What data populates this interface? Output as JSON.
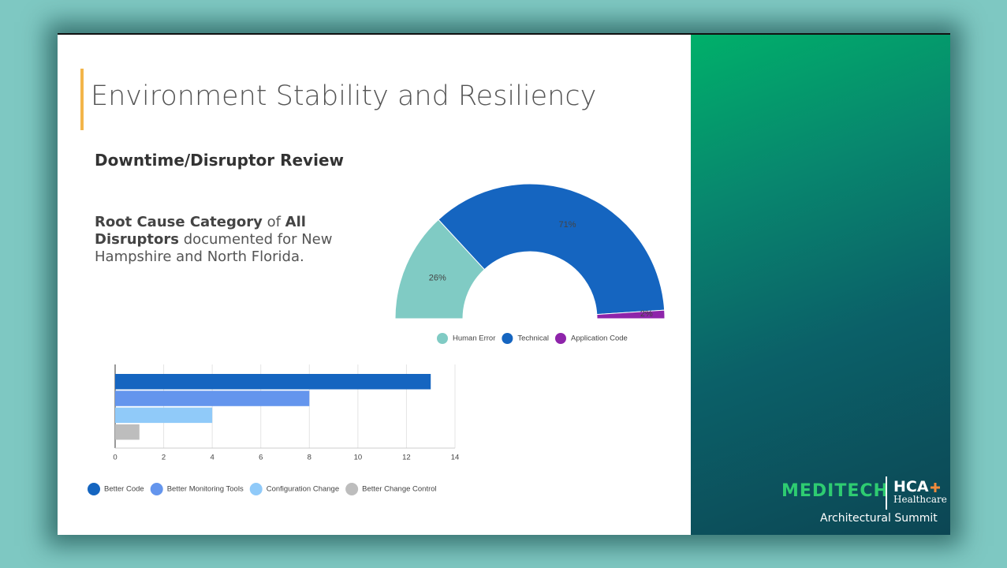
{
  "slide": {
    "title": "Environment Stability and Resiliency",
    "subtitle": "Downtime/Disruptor Review",
    "description": [
      {
        "text": "Root Cause Category",
        "bold": true
      },
      {
        "text": " of ",
        "bold": false
      },
      {
        "text": "All Disruptors",
        "bold": true
      },
      {
        "text": " documented for New Hampshire and North Florida.",
        "bold": false
      }
    ],
    "logo_left": "MEDITECH",
    "logo_right_top": "HCA",
    "logo_right_bottom": "Healthcare",
    "event": "Architectural Summit"
  },
  "chart_data": [
    {
      "type": "pie",
      "half": true,
      "donut": true,
      "categories": [
        "Human Error",
        "Technical",
        "Application Code"
      ],
      "values": [
        26,
        71,
        2
      ],
      "value_labels": [
        "26%",
        "71%",
        "2%"
      ],
      "colors": [
        "#80cbc4",
        "#1565c0",
        "#8e24aa"
      ],
      "legend": "bottom"
    },
    {
      "type": "bar",
      "orientation": "horizontal",
      "series": [
        {
          "name": "Better Code",
          "color": "#1565c0",
          "values": [
            13
          ]
        },
        {
          "name": "Better Monitoring Tools",
          "color": "#6495ed",
          "values": [
            8
          ]
        },
        {
          "name": "Configuration Change",
          "color": "#90caf9",
          "values": [
            4
          ]
        },
        {
          "name": "Better Change Control",
          "color": "#bdbdbd",
          "values": [
            1
          ]
        }
      ],
      "xlim": [
        0,
        14
      ],
      "xticks": [
        0,
        2,
        4,
        6,
        8,
        10,
        12,
        14
      ],
      "grid": true,
      "legend": "bottom"
    }
  ]
}
